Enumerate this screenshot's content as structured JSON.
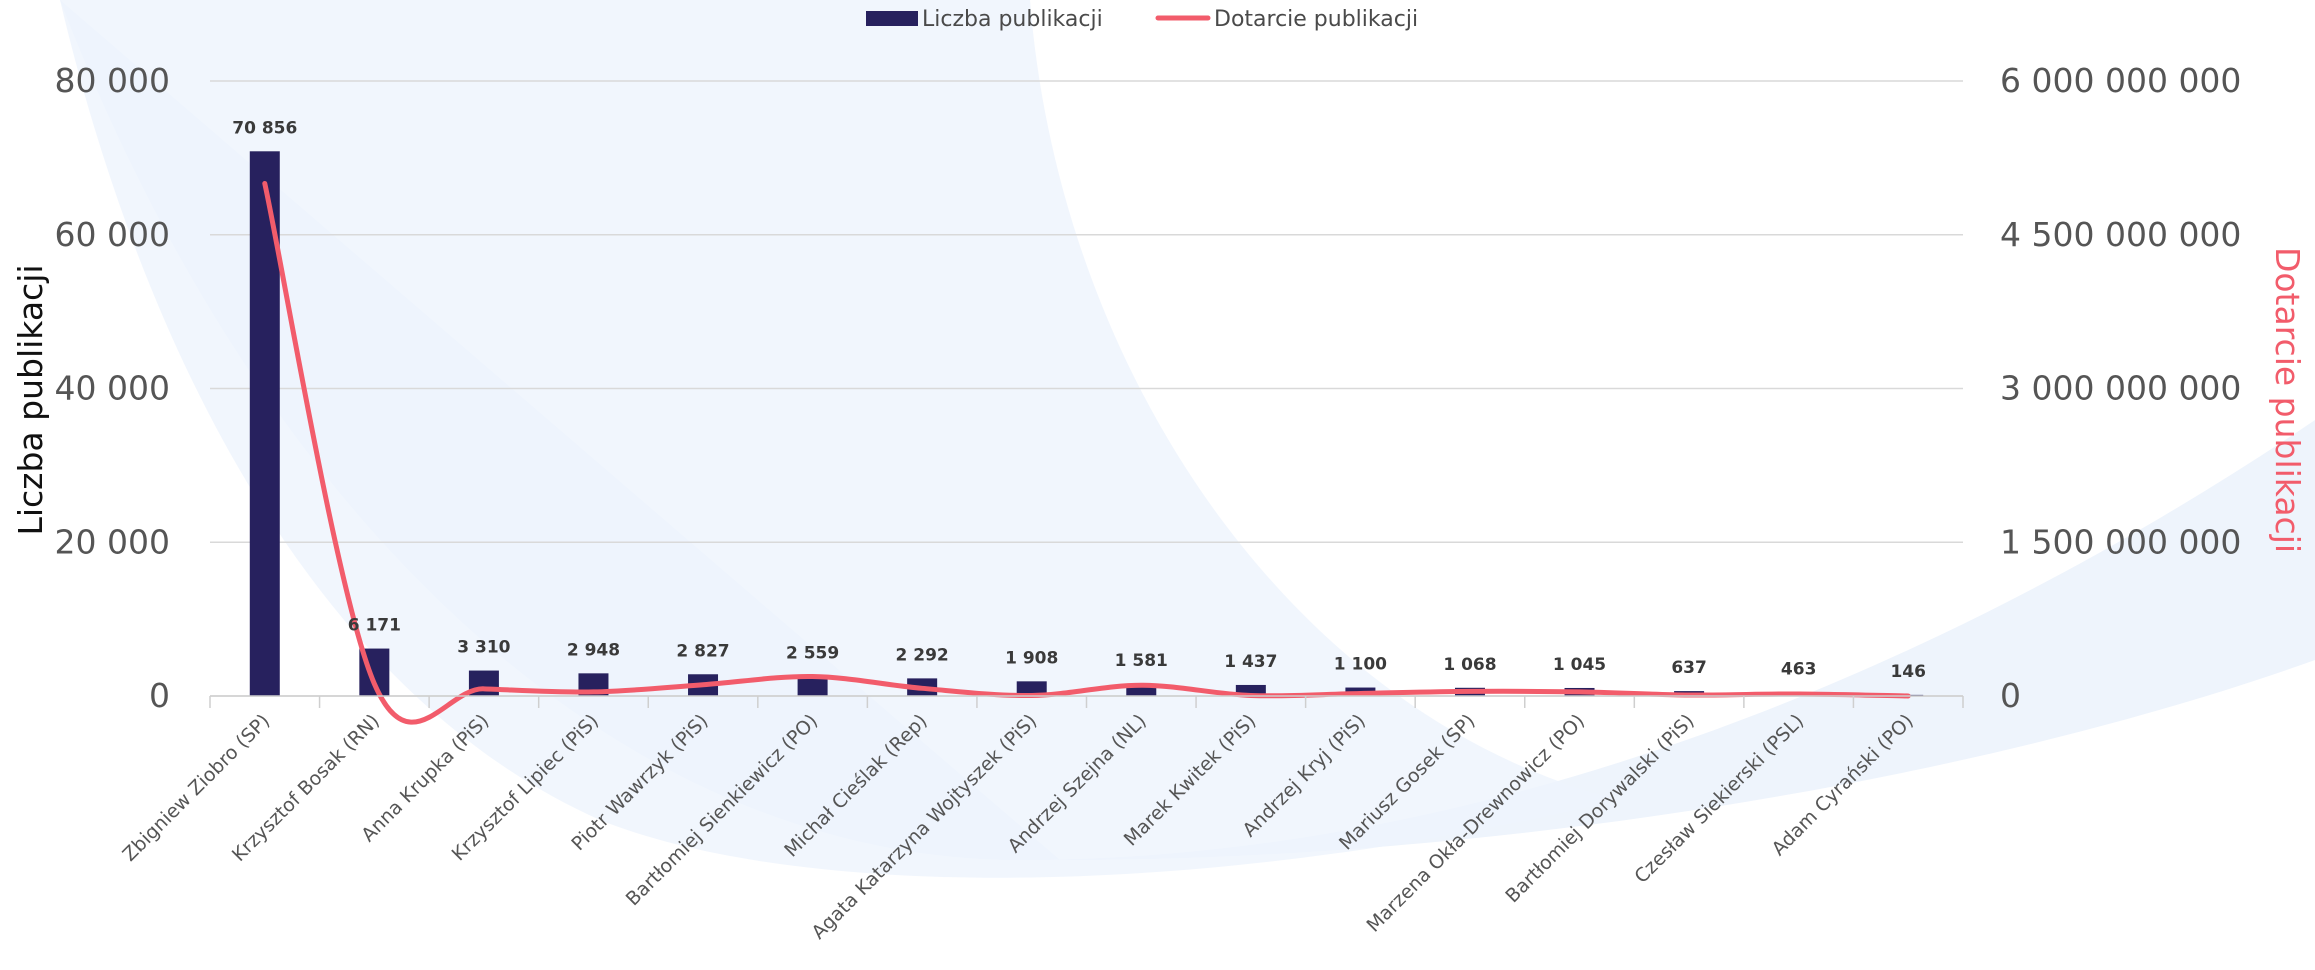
{
  "chart_data": {
    "type": "bar",
    "categories": [
      "Zbigniew Ziobro (SP)",
      "Krzysztof Bosak (RN)",
      "Anna Krupka (PiS)",
      "Krzysztof Lipiec (PiS)",
      "Piotr Wawrzyk (PiS)",
      "Bartłomiej Sienkiewicz (PO)",
      "Michał Cieślak (Rep)",
      "Agata Katarzyna Wojtyszek (PiS)",
      "Andrzej Szejna (NL)",
      "Marek Kwitek (PiS)",
      "Andrzej Kryj (PiS)",
      "Mariusz Gosek (SP)",
      "Marzena Okła-Drewnowicz (PO)",
      "Bartłomiej Dorywalski (PiS)",
      "Czesław Siekierski (PSL)",
      "Adam Cyrański (PO)"
    ],
    "series": [
      {
        "name": "Liczba publikacji",
        "type": "bar",
        "axis": "left",
        "color": "#27215e",
        "values": [
          70856,
          6171,
          3310,
          2948,
          2827,
          2559,
          2292,
          1908,
          1581,
          1437,
          1100,
          1068,
          1045,
          637,
          463,
          146
        ],
        "labels": [
          "70 856",
          "6 171",
          "3 310",
          "2 948",
          "2 827",
          "2 559",
          "2 292",
          "1 908",
          "1 581",
          "1 437",
          "1 100",
          "1 068",
          "1 045",
          "637",
          "463",
          "146"
        ]
      },
      {
        "name": "Dotarcie publikacji",
        "type": "line",
        "axis": "right",
        "color": "#f25c6b",
        "values": [
          5000000000,
          120000000,
          70000000,
          40000000,
          110000000,
          190000000,
          75000000,
          5000000,
          105000000,
          5000000,
          25000000,
          45000000,
          40000000,
          10000000,
          20000000,
          0
        ]
      }
    ],
    "y_left": {
      "label": "Liczba publikacji",
      "range": [
        0,
        80000
      ],
      "ticks": [
        0,
        20000,
        40000,
        60000,
        80000
      ],
      "tick_labels": [
        "0",
        "20 000",
        "40 000",
        "60 000",
        "80 000"
      ]
    },
    "y_right": {
      "label": "Dotarcie publikacji",
      "range": [
        0,
        6000000000
      ],
      "ticks": [
        0,
        1500000000,
        3000000000,
        4500000000,
        6000000000
      ],
      "tick_labels": [
        "0",
        "1 500 000 000",
        "3 000 000 000",
        "4 500 000 000",
        "6 000 000 000"
      ]
    },
    "legend": {
      "position": "top-center"
    },
    "grid": true,
    "background_color": "#eef4fc"
  }
}
